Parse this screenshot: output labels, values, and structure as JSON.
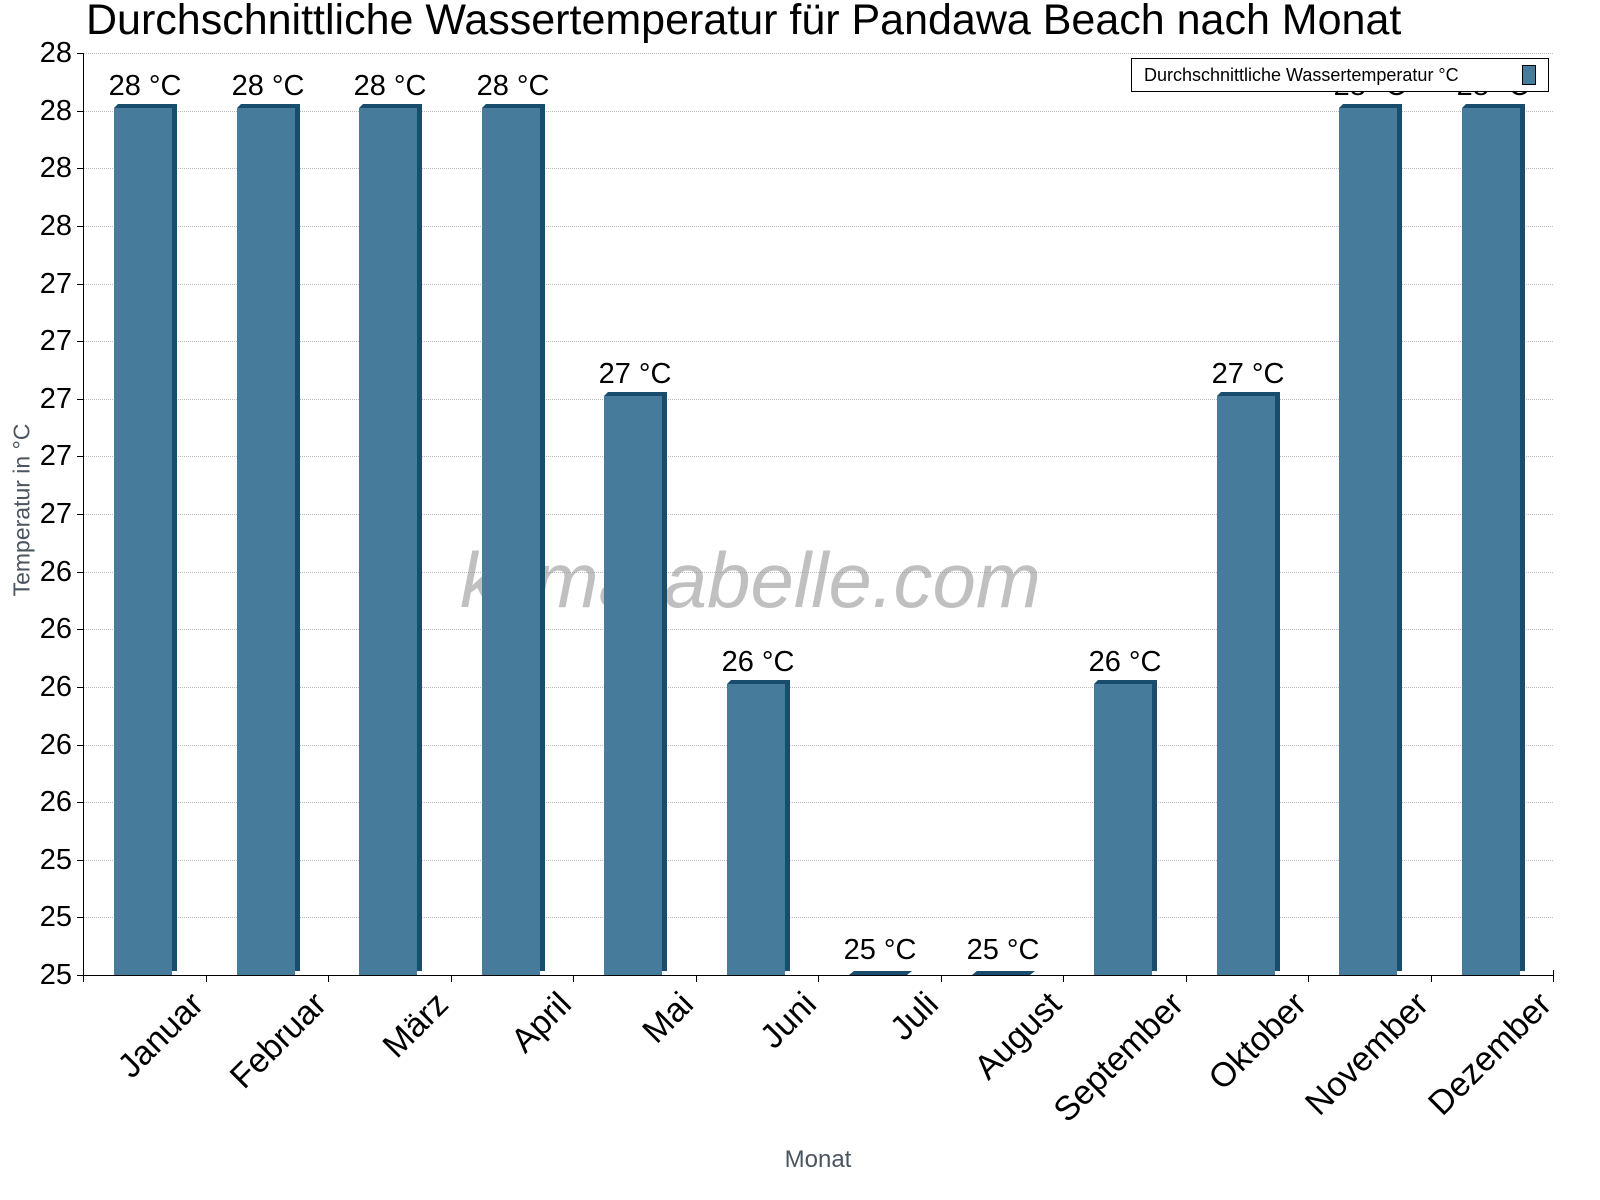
{
  "title": "Durchschnittliche Wassertemperatur für Pandawa Beach nach Monat",
  "watermark": "klimatabelle.com",
  "legend": {
    "label": "Durchschnittliche Wassertemperatur °C",
    "color": "#467b9c"
  },
  "axes": {
    "ylabel": "Temperatur in °C",
    "xlabel": "Monat",
    "yticks": [
      "28",
      "28",
      "28",
      "28",
      "27",
      "27",
      "27",
      "27",
      "27",
      "26",
      "26",
      "26",
      "26",
      "26",
      "25",
      "25",
      "25"
    ]
  },
  "colors": {
    "bar_front": "#467b9c",
    "bar_side": "#194c6d"
  },
  "chart_data": {
    "type": "bar",
    "title": "Durchschnittliche Wassertemperatur für Pandawa Beach nach Monat",
    "xlabel": "Monat",
    "ylabel": "Temperatur in °C",
    "categories": [
      "Januar",
      "Februar",
      "März",
      "April",
      "Mai",
      "Juni",
      "Juli",
      "August",
      "September",
      "Oktober",
      "November",
      "Dezember"
    ],
    "series": [
      {
        "name": "Durchschnittliche Wassertemperatur °C",
        "values": [
          28,
          28,
          28,
          28,
          27,
          26,
          25,
          25,
          26,
          27,
          28,
          28
        ]
      }
    ],
    "value_labels": [
      "28 °C",
      "28 °C",
      "28 °C",
      "28 °C",
      "27 °C",
      "26 °C",
      "25 °C",
      "25 °C",
      "26 °C",
      "27 °C",
      "28 °C",
      "28 °C"
    ],
    "ylim": [
      25,
      28.2
    ],
    "ytick_labels": [
      "28",
      "28",
      "28",
      "28",
      "27",
      "27",
      "27",
      "27",
      "27",
      "26",
      "26",
      "26",
      "26",
      "26",
      "25",
      "25",
      "25"
    ],
    "grid": true,
    "legend_position": "top-right"
  }
}
